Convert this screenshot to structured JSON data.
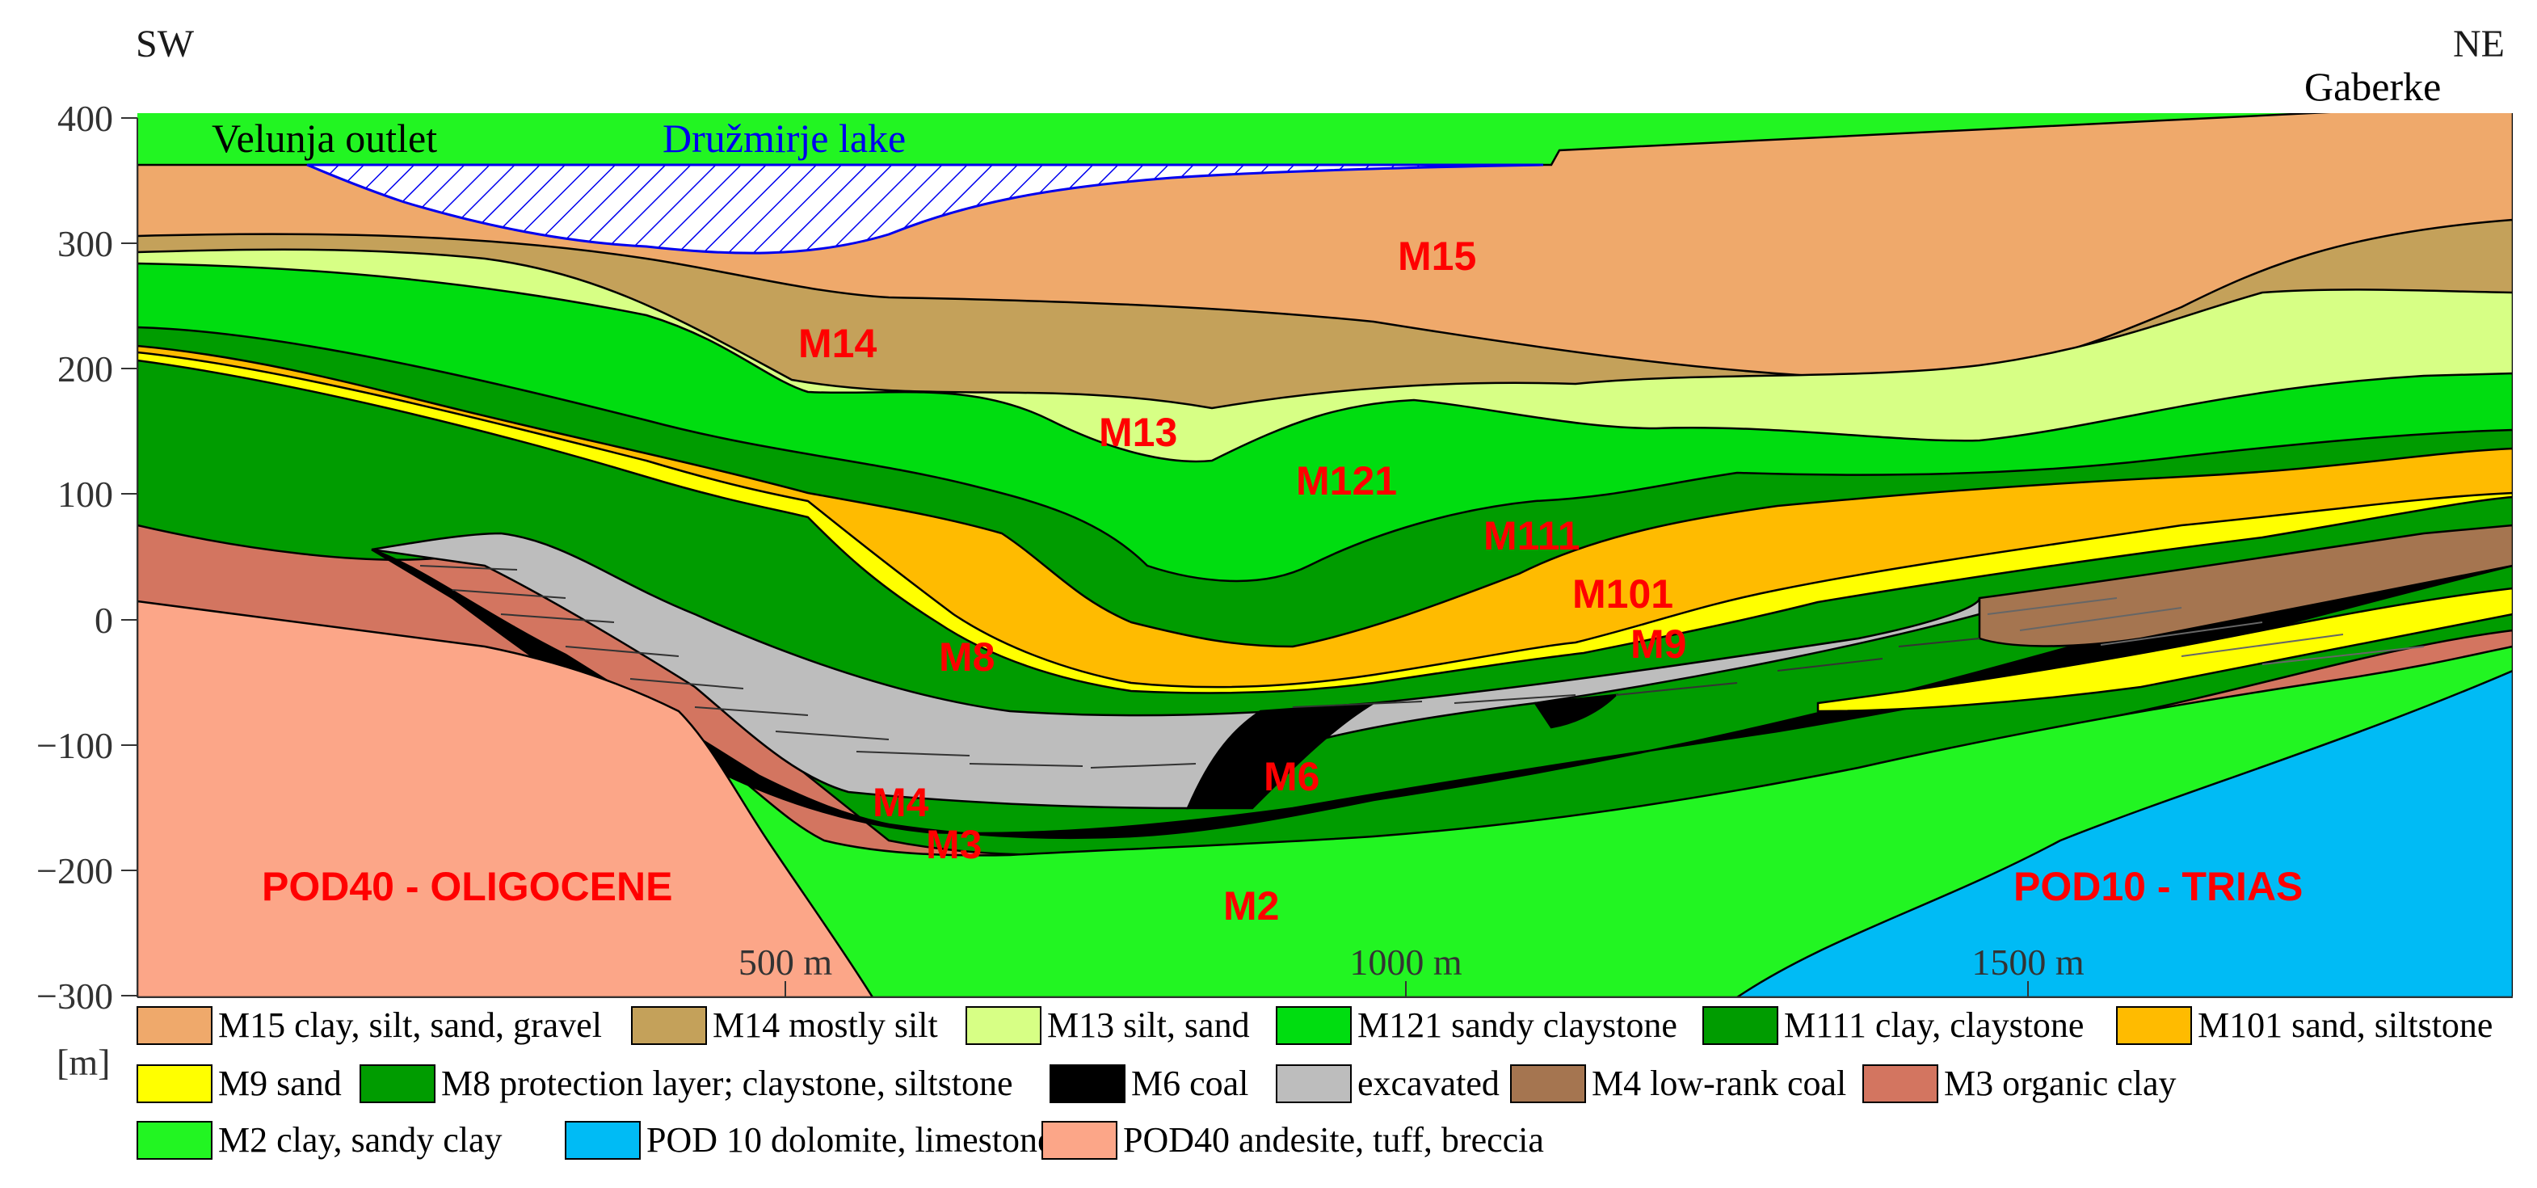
{
  "orientation": {
    "left": "SW",
    "right": "NE"
  },
  "places": {
    "velenje_outlet": "Velunja outlet",
    "lake": "Družmirje lake",
    "gaberke": "Gaberke"
  },
  "axis": {
    "unit": "[m]",
    "y_ticks": [
      "400",
      "300",
      "200",
      "100",
      "0",
      "−100",
      "−200",
      "−300"
    ],
    "x_ticks": [
      "500 m",
      "1000 m",
      "1500 m"
    ]
  },
  "layer_labels": {
    "m15": "M15",
    "m14": "M14",
    "m13": "M13",
    "m121": "M121",
    "m111": "M111",
    "m101": "M101",
    "m9": "M9",
    "m8": "M8",
    "m6": "M6",
    "m4": "M4",
    "m3": "M3",
    "m2": "M2",
    "pod40": "POD40 - OLIGOCENE",
    "pod10": "POD10 - TRIAS"
  },
  "colors": {
    "m15": "#efa96b",
    "m14": "#c4a15a",
    "m13": "#d7ff85",
    "m121": "#00dd10",
    "m111": "#009c00",
    "m101": "#ffbb00",
    "m9": "#ffff00",
    "m8": "#009c00",
    "m6": "#000000",
    "excavated": "#bdbdbd",
    "m4": "#a57550",
    "m3": "#d37560",
    "m2": "#22f522",
    "pod10": "#00bbf5",
    "pod40": "#fca688",
    "lake": "#0000ee"
  },
  "legend": [
    {
      "label": "M15 clay, silt, sand, gravel",
      "color": "#efa96b"
    },
    {
      "label": "M14 mostly silt",
      "color": "#c4a15a"
    },
    {
      "label": "M13 silt, sand",
      "color": "#d7ff85"
    },
    {
      "label": "M121 sandy claystone",
      "color": "#00dd10"
    },
    {
      "label": "M111 clay, claystone",
      "color": "#009c00"
    },
    {
      "label": "M101 sand, siltstone",
      "color": "#ffbb00"
    },
    {
      "label": "M9 sand",
      "color": "#ffff00"
    },
    {
      "label": "M8 protection layer; claystone, siltstone",
      "color": "#009c00"
    },
    {
      "label": "M6 coal",
      "color": "#000000"
    },
    {
      "label": "excavated",
      "color": "#bdbdbd"
    },
    {
      "label": "M4 low-rank coal",
      "color": "#a57550"
    },
    {
      "label": "M3 organic clay",
      "color": "#d37560"
    },
    {
      "label": "M2 clay, sandy clay",
      "color": "#22f522"
    },
    {
      "label": "POD 10 dolomite, limestone",
      "color": "#00bbf5"
    },
    {
      "label": "POD40 andesite, tuff, breccia",
      "color": "#fca688"
    }
  ]
}
